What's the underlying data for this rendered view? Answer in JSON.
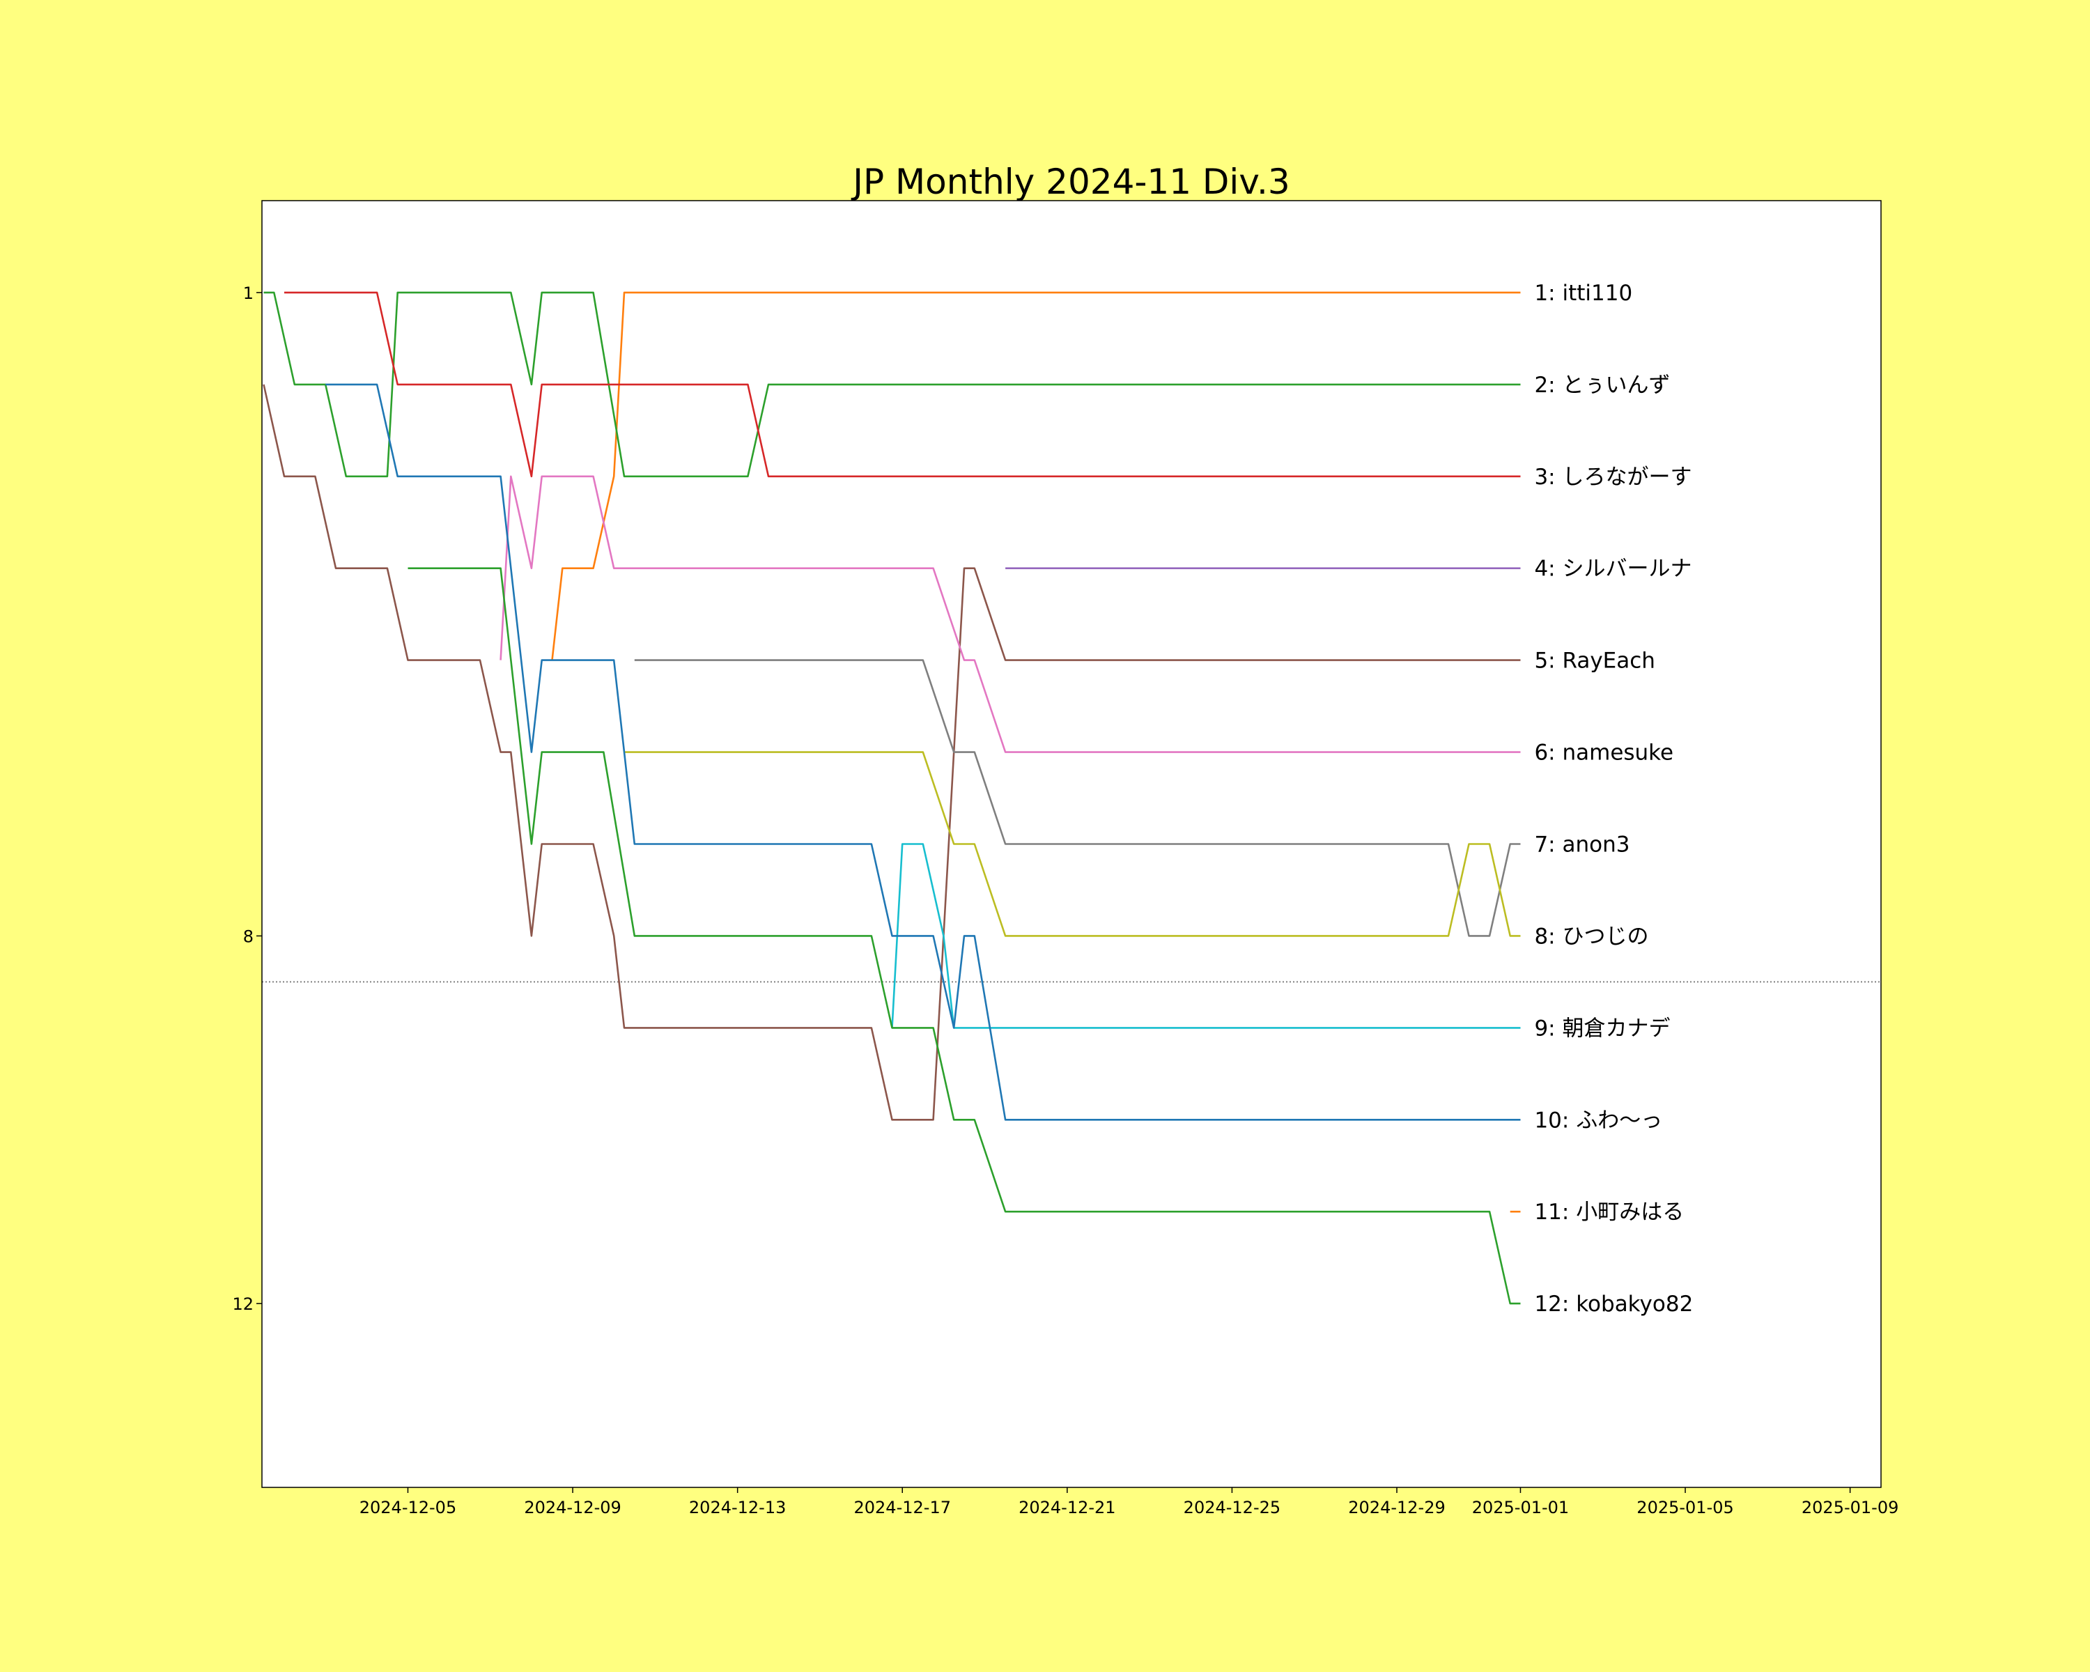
{
  "figure": {
    "background": "#ffff80",
    "axes_background": "#ffffff"
  },
  "chart_data": {
    "type": "line",
    "title": "JP Monthly 2024-11 Div.3",
    "xlabel": "",
    "ylabel": "",
    "y_inverted": true,
    "xlim": [
      "2024-12-01T11:00",
      "2025-01-09T18:00"
    ],
    "ylim": [
      14,
      0
    ],
    "xticks": [
      {
        "value": "2024-12-05",
        "label": "2024-12-05"
      },
      {
        "value": "2024-12-09",
        "label": "2024-12-09"
      },
      {
        "value": "2024-12-13",
        "label": "2024-12-13"
      },
      {
        "value": "2024-12-17",
        "label": "2024-12-17"
      },
      {
        "value": "2024-12-21",
        "label": "2024-12-21"
      },
      {
        "value": "2024-12-25",
        "label": "2024-12-25"
      },
      {
        "value": "2024-12-29",
        "label": "2024-12-29"
      },
      {
        "value": "2025-01-01",
        "label": "2025-01-01"
      },
      {
        "value": "2025-01-05",
        "label": "2025-01-05"
      },
      {
        "value": "2025-01-09",
        "label": "2025-01-09"
      }
    ],
    "yticks": [
      {
        "value": 1,
        "label": "1"
      },
      {
        "value": 8,
        "label": "8"
      },
      {
        "value": 12,
        "label": "12"
      }
    ],
    "cutoff_line": {
      "y": 8.5,
      "style": "dotted",
      "color": "#808080"
    },
    "grid": false,
    "legend": "none",
    "series": [
      {
        "name": "itti110",
        "label": "1: itti110",
        "color": "#ff7f0e",
        "points": [
          [
            "2024-12-08T12:00",
            5
          ],
          [
            "2024-12-08T18:00",
            4
          ],
          [
            "2024-12-09T12:00",
            4
          ],
          [
            "2024-12-10T00:00",
            3
          ],
          [
            "2024-12-10T06:00",
            1
          ],
          [
            "2025-01-01T00:00",
            1
          ]
        ]
      },
      {
        "name": "とぅいんず",
        "label": "2: とぅいんず",
        "color": "#2ca02c",
        "points": [
          [
            "2024-12-01T12:00",
            1
          ],
          [
            "2024-12-01T18:00",
            1
          ],
          [
            "2024-12-02T06:00",
            2
          ],
          [
            "2024-12-03T00:00",
            2
          ],
          [
            "2024-12-03T12:00",
            3
          ],
          [
            "2024-12-04T12:00",
            3
          ],
          [
            "2024-12-04T18:00",
            1
          ],
          [
            "2024-12-07T12:00",
            1
          ],
          [
            "2024-12-08T00:00",
            2
          ],
          [
            "2024-12-08T06:00",
            1
          ],
          [
            "2024-12-09T12:00",
            1
          ],
          [
            "2024-12-10T06:00",
            3
          ],
          [
            "2024-12-13T06:00",
            3
          ],
          [
            "2024-12-13T18:00",
            2
          ],
          [
            "2025-01-01T00:00",
            2
          ]
        ]
      },
      {
        "name": "しろながーす",
        "label": "3: しろながーす",
        "color": "#d62728",
        "points": [
          [
            "2024-12-02T00:00",
            1
          ],
          [
            "2024-12-04T06:00",
            1
          ],
          [
            "2024-12-04T18:00",
            2
          ],
          [
            "2024-12-07T12:00",
            2
          ],
          [
            "2024-12-08T00:00",
            3
          ],
          [
            "2024-12-08T06:00",
            2
          ],
          [
            "2024-12-13T06:00",
            2
          ],
          [
            "2024-12-13T18:00",
            3
          ],
          [
            "2025-01-01T00:00",
            3
          ]
        ]
      },
      {
        "name": "シルバールナ",
        "label": "4: シルバールナ",
        "color": "#9467bd",
        "points": [
          [
            "2024-12-19T12:00",
            4
          ],
          [
            "2025-01-01T00:00",
            4
          ]
        ]
      },
      {
        "name": "RayEach",
        "label": "5: RayEach",
        "color": "#8c564b",
        "points": [
          [
            "2024-12-01T12:00",
            2
          ],
          [
            "2024-12-02T00:00",
            3
          ],
          [
            "2024-12-02T18:00",
            3
          ],
          [
            "2024-12-03T06:00",
            4
          ],
          [
            "2024-12-04T12:00",
            4
          ],
          [
            "2024-12-05T00:00",
            5
          ],
          [
            "2024-12-06T18:00",
            5
          ],
          [
            "2024-12-07T06:00",
            6
          ],
          [
            "2024-12-07T12:00",
            6
          ],
          [
            "2024-12-08T00:00",
            8
          ],
          [
            "2024-12-08T06:00",
            7
          ],
          [
            "2024-12-09T12:00",
            7
          ],
          [
            "2024-12-10T00:00",
            8
          ],
          [
            "2024-12-10T06:00",
            9
          ],
          [
            "2024-12-16T06:00",
            9
          ],
          [
            "2024-12-16T18:00",
            10
          ],
          [
            "2024-12-17T18:00",
            10
          ],
          [
            "2024-12-18T12:00",
            4
          ],
          [
            "2024-12-18T18:00",
            4
          ],
          [
            "2024-12-19T12:00",
            5
          ],
          [
            "2025-01-01T00:00",
            5
          ]
        ]
      },
      {
        "name": "namesuke",
        "label": "6: namesuke",
        "color": "#e377c2",
        "points": [
          [
            "2024-12-07T06:00",
            5
          ],
          [
            "2024-12-07T12:00",
            3
          ],
          [
            "2024-12-08T00:00",
            4
          ],
          [
            "2024-12-08T06:00",
            3
          ],
          [
            "2024-12-09T12:00",
            3
          ],
          [
            "2024-12-10T00:00",
            4
          ],
          [
            "2024-12-17T18:00",
            4
          ],
          [
            "2024-12-18T12:00",
            5
          ],
          [
            "2024-12-18T18:00",
            5
          ],
          [
            "2024-12-19T12:00",
            6
          ],
          [
            "2025-01-01T00:00",
            6
          ]
        ]
      },
      {
        "name": "anon3",
        "label": "7: anon3",
        "color": "#7f7f7f",
        "points": [
          [
            "2024-12-10T12:00",
            5
          ],
          [
            "2024-12-17T12:00",
            5
          ],
          [
            "2024-12-18T06:00",
            6
          ],
          [
            "2024-12-18T18:00",
            6
          ],
          [
            "2024-12-19T12:00",
            7
          ],
          [
            "2024-12-30T06:00",
            7
          ],
          [
            "2024-12-30T18:00",
            8
          ],
          [
            "2024-12-31T06:00",
            8
          ],
          [
            "2024-12-31T18:00",
            7
          ],
          [
            "2025-01-01T00:00",
            7
          ]
        ]
      },
      {
        "name": "ひつじの",
        "label": "8: ひつじの",
        "color": "#bcbd22",
        "points": [
          [
            "2024-12-10T06:00",
            6
          ],
          [
            "2024-12-17T12:00",
            6
          ],
          [
            "2024-12-18T06:00",
            7
          ],
          [
            "2024-12-18T18:00",
            7
          ],
          [
            "2024-12-19T12:00",
            8
          ],
          [
            "2024-12-30T06:00",
            8
          ],
          [
            "2024-12-30T18:00",
            7
          ],
          [
            "2024-12-31T06:00",
            7
          ],
          [
            "2024-12-31T18:00",
            8
          ],
          [
            "2025-01-01T00:00",
            8
          ]
        ]
      },
      {
        "name": "朝倉カナデ",
        "label": "9: 朝倉カナデ",
        "color": "#17becf",
        "points": [
          [
            "2024-12-16T18:00",
            9
          ],
          [
            "2024-12-17T00:00",
            7
          ],
          [
            "2024-12-17T12:00",
            7
          ],
          [
            "2024-12-18T00:00",
            8
          ],
          [
            "2024-12-18T06:00",
            9
          ],
          [
            "2025-01-01T00:00",
            9
          ]
        ]
      },
      {
        "name": "ふわ〜っ",
        "label": "10: ふわ〜っ",
        "color": "#1f77b4",
        "points": [
          [
            "2024-12-03T00:00",
            2
          ],
          [
            "2024-12-04T06:00",
            2
          ],
          [
            "2024-12-04T18:00",
            3
          ],
          [
            "2024-12-07T06:00",
            3
          ],
          [
            "2024-12-08T00:00",
            6
          ],
          [
            "2024-12-08T06:00",
            5
          ],
          [
            "2024-12-10T00:00",
            5
          ],
          [
            "2024-12-10T12:00",
            7
          ],
          [
            "2024-12-16T06:00",
            7
          ],
          [
            "2024-12-16T18:00",
            8
          ],
          [
            "2024-12-17T18:00",
            8
          ],
          [
            "2024-12-18T06:00",
            9
          ],
          [
            "2024-12-18T12:00",
            8
          ],
          [
            "2024-12-18T18:00",
            8
          ],
          [
            "2024-12-19T12:00",
            10
          ],
          [
            "2025-01-01T00:00",
            10
          ]
        ]
      },
      {
        "name": "小町みはる",
        "label": "11: 小町みはる",
        "color": "#ff7f0e",
        "points": [
          [
            "2024-12-31T18:00",
            11
          ],
          [
            "2025-01-01T00:00",
            11
          ]
        ]
      },
      {
        "name": "kobakyo82",
        "label": "12: kobakyo82",
        "color": "#2ca02c",
        "points": [
          [
            "2024-12-05T00:00",
            4
          ],
          [
            "2024-12-07T06:00",
            4
          ],
          [
            "2024-12-08T00:00",
            7
          ],
          [
            "2024-12-08T06:00",
            6
          ],
          [
            "2024-12-09T18:00",
            6
          ],
          [
            "2024-12-10T12:00",
            8
          ],
          [
            "2024-12-16T06:00",
            8
          ],
          [
            "2024-12-16T18:00",
            9
          ],
          [
            "2024-12-17T18:00",
            9
          ],
          [
            "2024-12-18T06:00",
            10
          ],
          [
            "2024-12-18T18:00",
            10
          ],
          [
            "2024-12-19T12:00",
            11
          ],
          [
            "2024-12-31T06:00",
            11
          ],
          [
            "2024-12-31T18:00",
            12
          ],
          [
            "2025-01-01T00:00",
            12
          ]
        ]
      }
    ]
  }
}
